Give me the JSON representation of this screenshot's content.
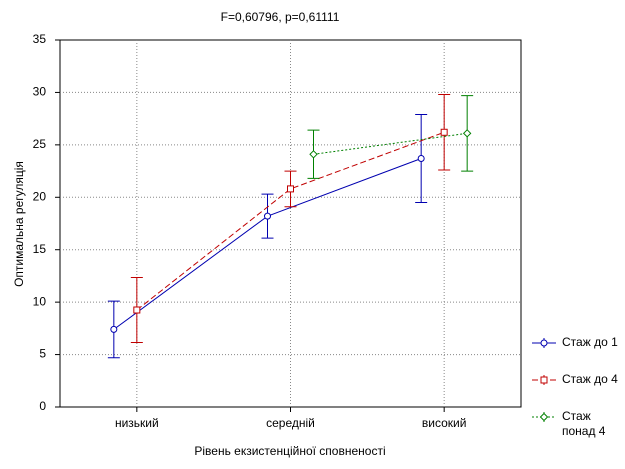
{
  "chart_data": {
    "type": "line",
    "title": "F=0,60796, p=0,61111",
    "x_label": "Рівень екзистенційної сповненості",
    "y_label": "Оптимальна регуляція",
    "categories": [
      "низький",
      "середній",
      "високий"
    ],
    "series": [
      {
        "name": "Стаж до 1",
        "color": "#0000b0",
        "line_style": "solid",
        "marker": "circle",
        "values": [
          7.4,
          18.2,
          23.7
        ],
        "errors": [
          2.7,
          2.1,
          4.2
        ]
      },
      {
        "name": "Стаж до 4",
        "color": "#c00000",
        "line_style": "dashed",
        "marker": "square",
        "values": [
          9.25,
          20.8,
          26.2
        ],
        "errors": [
          3.1,
          1.7,
          3.6
        ]
      },
      {
        "name": "Стаж понад 4",
        "color": "#008000",
        "line_style": "dotted",
        "marker": "diamond",
        "values": [
          null,
          24.1,
          26.1
        ],
        "errors": [
          null,
          2.3,
          3.6
        ]
      }
    ],
    "ylim": [
      0,
      35
    ],
    "yticks": [
      0,
      5,
      10,
      15,
      20,
      25,
      30,
      35
    ],
    "grid": true,
    "legend": "right"
  }
}
